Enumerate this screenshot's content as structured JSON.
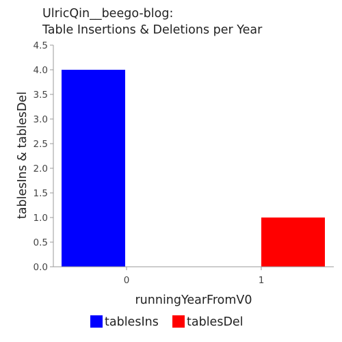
{
  "chart_data": {
    "type": "bar",
    "title_lines": [
      "UlricQin__beego-blog:",
      "Table Insertions & Deletions per Year"
    ],
    "xlabel": "runningYearFromV0",
    "ylabel": "tablesIns & tablesDel",
    "categories": [
      "0",
      "1"
    ],
    "series": [
      {
        "name": "tablesIns",
        "color": "#0000ff",
        "values": [
          4.0,
          0
        ]
      },
      {
        "name": "tablesDel",
        "color": "#ff0000",
        "values": [
          0,
          1.0
        ]
      }
    ],
    "ylim": [
      0,
      4.5
    ],
    "yticks": [
      "0.0",
      "0.5",
      "1.0",
      "1.5",
      "2.0",
      "2.5",
      "3.0",
      "3.5",
      "4.0",
      "4.5"
    ],
    "grid": false,
    "legend_position": "bottom"
  }
}
